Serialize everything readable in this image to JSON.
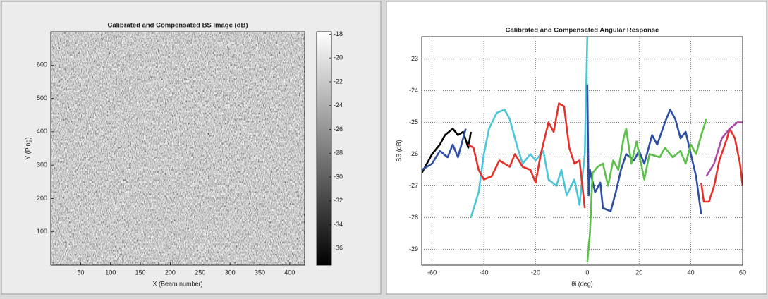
{
  "chart_data": [
    {
      "type": "image",
      "title": "Calibrated and Compensated BS Image (dB)",
      "xlabel": "X (Beam number)",
      "ylabel": "Y (Ping)",
      "xlim": [
        0,
        425
      ],
      "xticks": [
        50,
        100,
        150,
        200,
        250,
        300,
        350,
        400
      ],
      "ylim": [
        0,
        700
      ],
      "yticks": [
        100,
        200,
        300,
        400,
        500,
        600
      ],
      "clim": [
        -37.4,
        -17.8
      ],
      "cticks": [
        -18,
        -20,
        -22,
        -24,
        -26,
        -28,
        -30,
        -32,
        -34,
        -36
      ],
      "colormap": [
        "#000000",
        "#ffffff"
      ],
      "grid": false
    },
    {
      "type": "line",
      "title": "Calibrated and Compensated Angular Response",
      "xlabel": "θi (deg)",
      "ylabel": "BS (dB)",
      "xlim": [
        -64,
        60
      ],
      "xticks": [
        -60,
        -40,
        -20,
        0,
        20,
        40,
        60
      ],
      "ylim": [
        -29.5,
        -22.3
      ],
      "yticks": [
        -29,
        -28,
        -27,
        -26,
        -25,
        -24,
        -23
      ],
      "grid": true,
      "series": [
        {
          "color": "#000000",
          "x": [
            -64,
            -60,
            -57,
            -55,
            -52,
            -50,
            -48,
            -46,
            -45
          ],
          "values": [
            -26.6,
            -26.0,
            -25.7,
            -25.4,
            -25.2,
            -25.4,
            -25.3,
            -25.8,
            -25.3
          ]
        },
        {
          "color": "#2e4fa3",
          "x": [
            -64,
            -60,
            -57,
            -54,
            -52,
            -50,
            -48,
            -47
          ],
          "values": [
            -26.5,
            -26.3,
            -25.9,
            -26.1,
            -25.7,
            -26.1,
            -25.5,
            -25.2
          ]
        },
        {
          "color": "#4cc6d8",
          "x": [
            -45,
            -42,
            -40,
            -38,
            -35,
            -32,
            -30,
            -27,
            -25,
            -22,
            -20,
            -17,
            -15,
            -12,
            -10,
            -8,
            -5,
            -3,
            -1,
            0
          ],
          "values": [
            -28.0,
            -27.2,
            -26.0,
            -25.2,
            -24.7,
            -24.6,
            -24.9,
            -25.8,
            -26.3,
            -26.0,
            -26.2,
            -25.9,
            -26.8,
            -27.0,
            -26.5,
            -27.3,
            -26.8,
            -27.6,
            -26.0,
            -22.3
          ]
        },
        {
          "color": "#e8302a",
          "x": [
            -46,
            -44,
            -42,
            -40,
            -37,
            -34,
            -30,
            -28,
            -25,
            -22,
            -20,
            -18,
            -15,
            -13,
            -11,
            -9,
            -7,
            -5,
            -3,
            -1
          ],
          "values": [
            -25.7,
            -25.8,
            -26.5,
            -26.8,
            -26.7,
            -26.2,
            -26.4,
            -26.0,
            -26.4,
            -26.5,
            -26.9,
            -26.0,
            -25.0,
            -25.3,
            -24.4,
            -24.5,
            -25.8,
            -26.3,
            -26.2,
            -27.7
          ]
        },
        {
          "color": "#2e4fa3",
          "x": [
            0,
            0.5,
            1,
            3,
            5,
            6,
            9,
            11,
            13,
            15,
            18,
            20,
            22,
            25,
            27,
            30,
            32,
            34,
            36,
            38,
            40,
            42,
            44
          ],
          "values": [
            -23.8,
            -27.3,
            -26.5,
            -27.2,
            -26.9,
            -27.7,
            -27.8,
            -27.2,
            -26.5,
            -26.0,
            -26.2,
            -25.9,
            -26.3,
            -25.4,
            -25.7,
            -25.0,
            -24.6,
            -24.9,
            -25.5,
            -25.3,
            -26.0,
            -26.7,
            -27.9
          ]
        },
        {
          "color": "#5cc04a",
          "x": [
            0,
            1,
            2,
            4,
            6,
            8,
            10,
            12,
            14,
            15,
            17,
            19,
            22,
            24,
            28,
            30,
            33,
            36,
            38,
            40,
            42,
            44,
            46
          ],
          "values": [
            -29.4,
            -28.5,
            -26.6,
            -26.4,
            -26.3,
            -27.0,
            -26.2,
            -26.5,
            -25.5,
            -25.2,
            -26.3,
            -25.6,
            -26.8,
            -26.0,
            -26.1,
            -25.8,
            -26.1,
            -25.9,
            -26.3,
            -25.7,
            -26.0,
            -25.4,
            -24.9
          ]
        },
        {
          "color": "#e8302a",
          "x": [
            44,
            45,
            47,
            49,
            51,
            54,
            55,
            57,
            59,
            60
          ],
          "values": [
            -26.9,
            -27.5,
            -27.5,
            -27.0,
            -26.2,
            -25.5,
            -25.2,
            -25.5,
            -26.3,
            -27.0
          ]
        },
        {
          "color": "#a94aa8",
          "x": [
            46,
            49,
            52,
            55,
            58,
            60
          ],
          "values": [
            -26.7,
            -26.3,
            -25.5,
            -25.2,
            -25.0,
            -25.0
          ]
        }
      ]
    }
  ]
}
